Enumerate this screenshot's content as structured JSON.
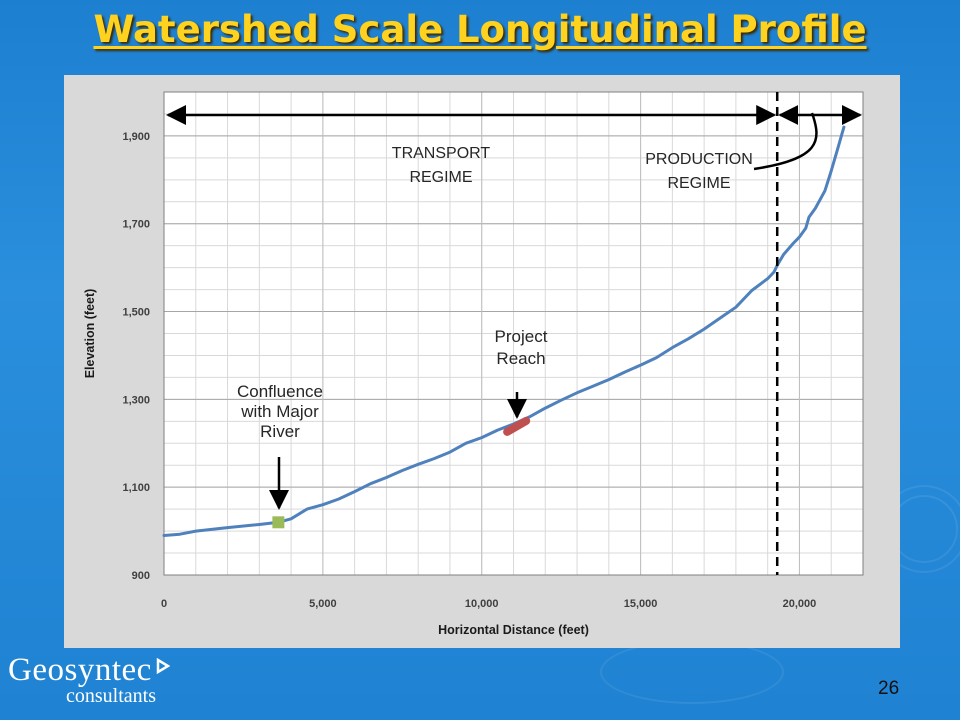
{
  "slide": {
    "title": "Watershed Scale Longitudinal Profile",
    "number": "26",
    "logo_name": "Geosyntec",
    "logo_sub": "consultants"
  },
  "colors": {
    "background": "#2a8fdd",
    "title": "#ffd21f",
    "plot_bg": "#ffffff",
    "panel_bg": "#d9d9d9",
    "line": "#4f81bd",
    "confluence_marker": "#9bbb59",
    "project_reach": "#c0504d"
  },
  "chart_data": {
    "type": "line",
    "xlabel": "Horizontal Distance (feet)",
    "ylabel": "Elevation (feet)",
    "xlim": [
      0,
      22000
    ],
    "ylim": [
      900,
      2000
    ],
    "xticks": [
      0,
      5000,
      10000,
      15000,
      20000
    ],
    "xtick_labels": [
      "0",
      "5,000",
      "10,000",
      "15,000",
      "20,000"
    ],
    "yticks": [
      900,
      1100,
      1300,
      1500,
      1700,
      1900
    ],
    "ytick_labels": [
      "900",
      "1,100",
      "1,300",
      "1,500",
      "1,700",
      "1,900"
    ],
    "grid": true,
    "series": [
      {
        "x": [
          0,
          500,
          1000,
          2000,
          3000,
          3600,
          4000,
          4500,
          5000,
          5500,
          6000,
          6500,
          7000,
          7500,
          8000,
          8500,
          9000,
          9500,
          10000,
          10500,
          11000,
          11500,
          12000,
          12500,
          13000,
          13500,
          14000,
          14500,
          15000,
          15500,
          16000,
          16500,
          17000,
          17500,
          18000,
          18500,
          19000,
          19200,
          19300,
          19500,
          19800,
          20000,
          20200,
          20300,
          20500,
          20800,
          21000,
          21200,
          21400
        ],
        "y": [
          990,
          993,
          1000,
          1008,
          1015,
          1020,
          1028,
          1050,
          1060,
          1073,
          1090,
          1108,
          1122,
          1138,
          1152,
          1165,
          1180,
          1200,
          1213,
          1230,
          1244,
          1260,
          1280,
          1298,
          1315,
          1330,
          1345,
          1362,
          1378,
          1395,
          1418,
          1438,
          1460,
          1485,
          1510,
          1548,
          1575,
          1590,
          1605,
          1630,
          1655,
          1670,
          1690,
          1715,
          1735,
          1775,
          1820,
          1870,
          1920
        ]
      }
    ],
    "markers": [
      {
        "label": "Confluence with Major River",
        "x": 3600,
        "y": 1020,
        "shape": "square"
      },
      {
        "label": "Project Reach",
        "x_start": 10800,
        "x_end": 11400,
        "y_start": 1226,
        "y_end": 1251,
        "shape": "segment"
      }
    ],
    "regime_boundary_x": 19300,
    "annotations": {
      "confluence": [
        "Confluence",
        "with Major",
        "River"
      ],
      "project_reach": [
        "Project",
        "Reach"
      ],
      "transport": [
        "TRANSPORT",
        "REGIME"
      ],
      "production": [
        "PRODUCTION",
        "REGIME"
      ]
    }
  }
}
